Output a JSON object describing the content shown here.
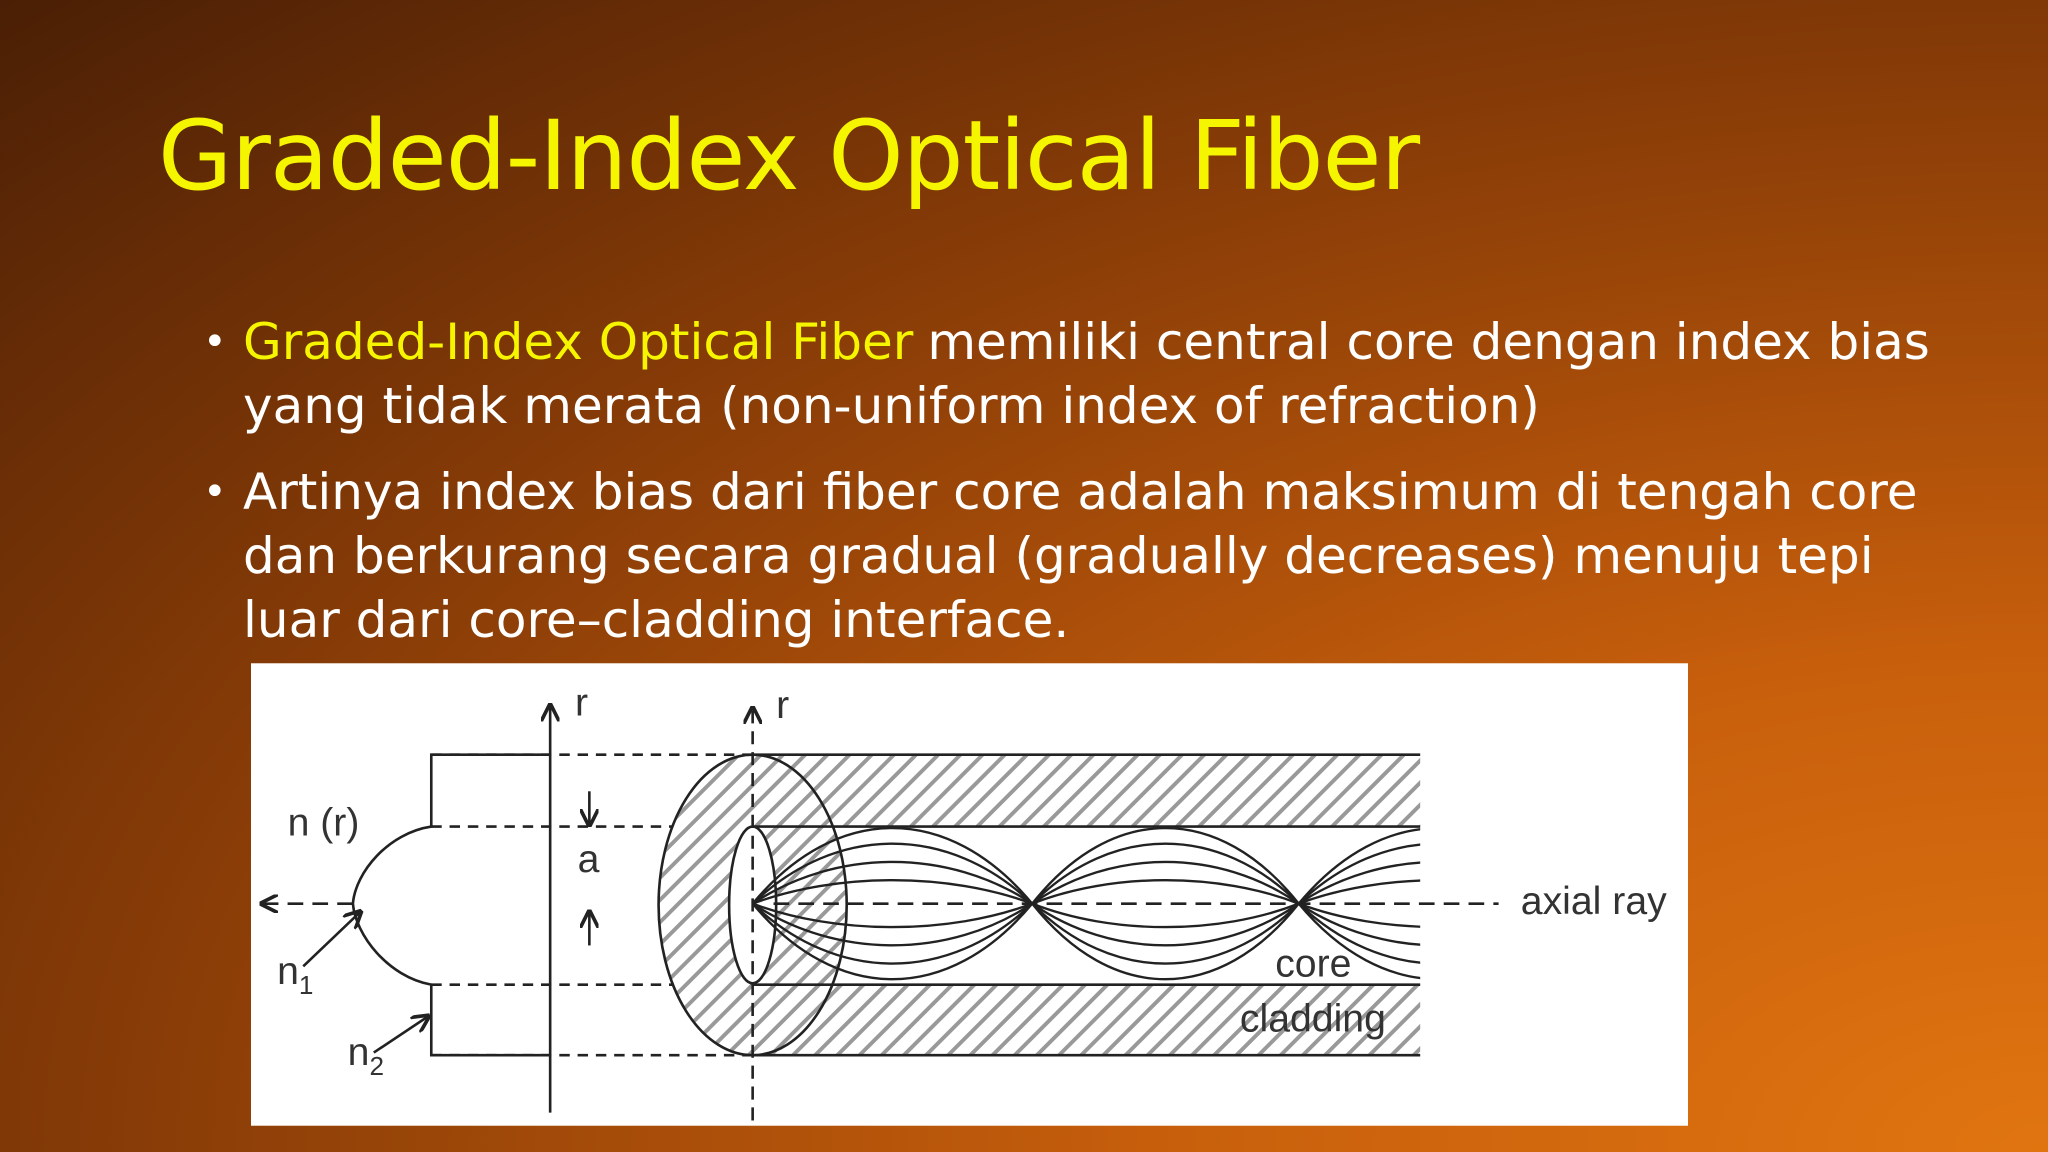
{
  "slide": {
    "title": "Graded-Index Optical Fiber",
    "bullets": [
      {
        "highlight": "Graded-Index Optical Fiber",
        "text": "memiliki central core dengan index bias yang tidak merata (non-uniform index of refraction)"
      },
      {
        "text": "Artinya index bias dari fiber core adalah maksimum di tengah core dan berkurang secara gradual (gradually decreases) menuju tepi luar dari  core–cladding interface."
      }
    ]
  },
  "diagram": {
    "labels": {
      "r_profile": "r",
      "r_fiber": "r",
      "n_r": "n (r)",
      "a": "a",
      "n1": {
        "base": "n",
        "sub": "1"
      },
      "n2": {
        "base": "n",
        "sub": "2"
      },
      "axial_ray": "axial ray",
      "core": "core",
      "cladding": "cladding"
    }
  }
}
